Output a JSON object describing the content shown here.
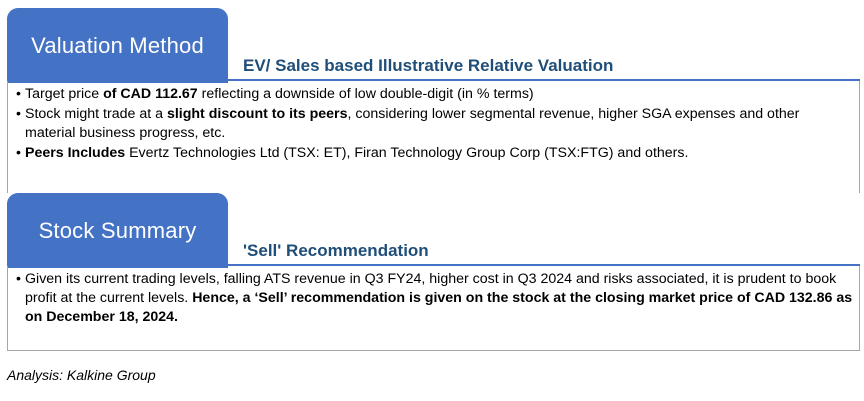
{
  "valuation": {
    "tab_title": "Valuation Method",
    "subtitle": "EV/ Sales based Illustrative Relative Valuation",
    "bullet1": {
      "pre": "Target price ",
      "bold": "of CAD 112.67",
      "post": " reflecting a downside of low double-digit (in % terms)"
    },
    "bullet2": {
      "pre": "Stock might trade at a ",
      "bold": "slight discount to its peers",
      "post": ", considering  lower segmental revenue, higher SGA expenses and other material business progress, etc."
    },
    "bullet3": {
      "bold": "Peers Includes",
      "post": "  Evertz Technologies Ltd (TSX: ET), Firan Technology Group Corp (TSX:FTG) and others."
    }
  },
  "summary": {
    "tab_title": "Stock Summary",
    "subtitle": "'Sell' Recommendation",
    "bullet1": {
      "pre": "Given its current trading levels, falling  ATS revenue in Q3 FY24, higher  cost in Q3 2024 and risks associated, it is prudent to book profit at the current levels. ",
      "bold": "Hence, a ‘Sell’ recommendation is given on the stock at the closing market price of CAD 132.86 as on December  18, 2024."
    }
  },
  "footer": "Analysis: Kalkine Group",
  "colors": {
    "accent": "#4472c4",
    "subtitle": "#1f4e79"
  }
}
